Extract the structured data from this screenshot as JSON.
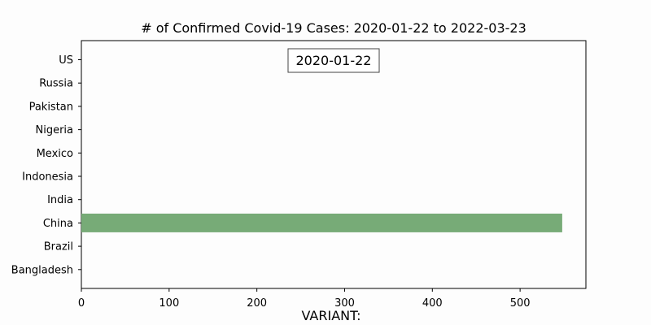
{
  "chart_data": {
    "type": "bar",
    "orientation": "horizontal",
    "title": "# of Confirmed Covid-19 Cases: 2020-01-22 to 2022-03-23",
    "xlabel": "VARIANT:",
    "ylabel": "",
    "date_label": "2020-01-22",
    "categories": [
      "US",
      "Russia",
      "Pakistan",
      "Nigeria",
      "Mexico",
      "Indonesia",
      "India",
      "China",
      "Brazil",
      "Bangladesh"
    ],
    "values": [
      0,
      0,
      0,
      0,
      0,
      0,
      0,
      548,
      0,
      0
    ],
    "bar_color": "#77ab77",
    "xlim": [
      0,
      575
    ],
    "xticks": [
      0,
      100,
      200,
      300,
      400,
      500
    ],
    "xtick_labels": [
      "0",
      "100",
      "200",
      "300",
      "400",
      "500"
    ],
    "grid": false,
    "legend": "none"
  }
}
